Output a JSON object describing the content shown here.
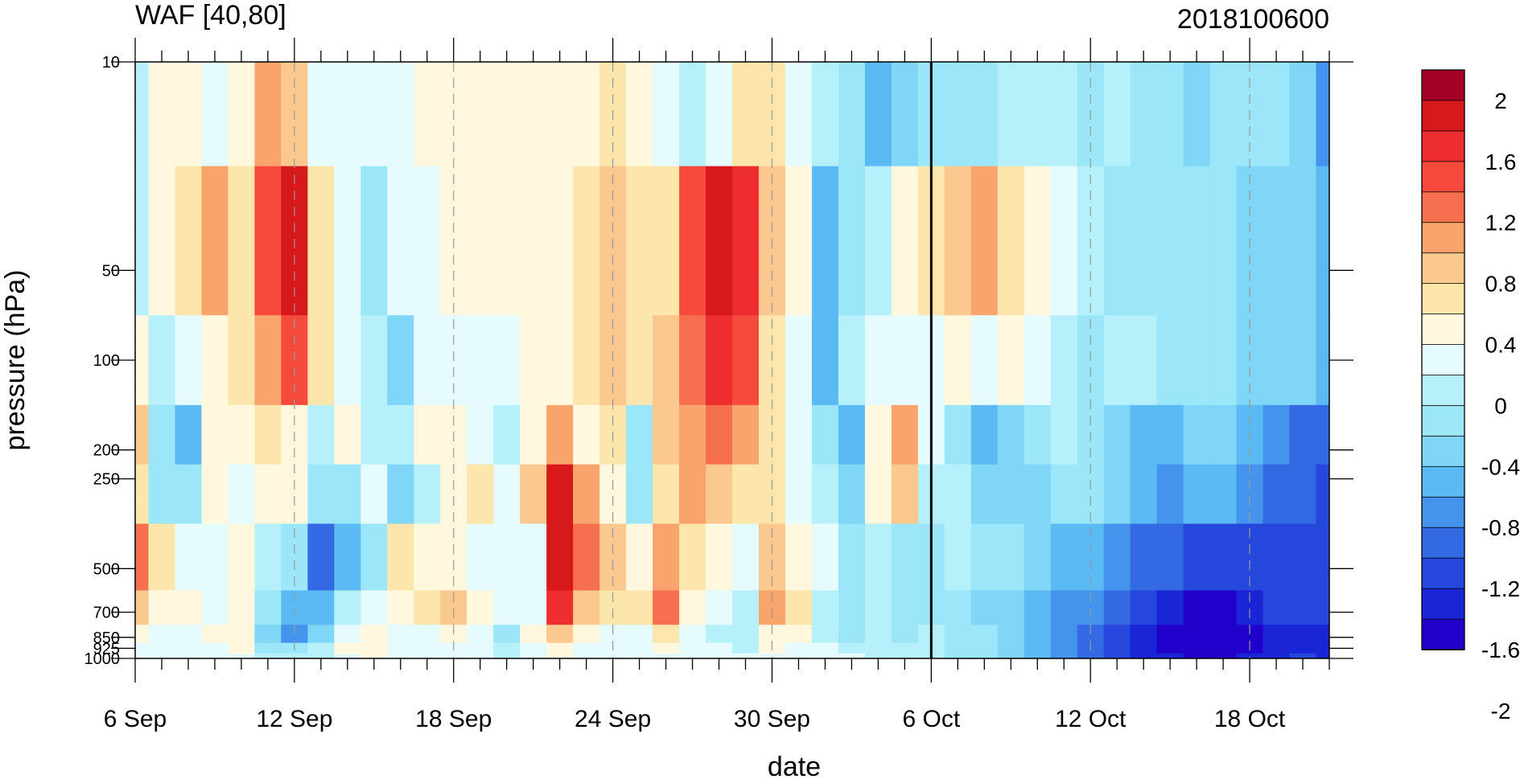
{
  "chart_data": {
    "type": "heatmap",
    "title": "WAF [40,80]",
    "subtitle": "2018100600",
    "xlabel": "date",
    "ylabel": "pressure (hPa)",
    "x_ticks": [
      "6 Sep",
      "12 Sep",
      "18 Sep",
      "24 Sep",
      "30 Sep",
      "6 Oct",
      "12 Oct",
      "18 Oct"
    ],
    "x_days": [
      0,
      6,
      12,
      18,
      24,
      30,
      36,
      42
    ],
    "xlim": [
      0,
      45
    ],
    "y_scale": "log",
    "ylim": [
      1000,
      10
    ],
    "y_ticks": [
      "10",
      "50",
      "100",
      "200",
      "250",
      "500",
      "700",
      "850",
      "925",
      "1000"
    ],
    "y_values": [
      10,
      50,
      100,
      200,
      250,
      500,
      700,
      850,
      925,
      1000
    ],
    "vertical_marker_day": 30,
    "dashed_vertical_lines": true,
    "colorbar": {
      "labels": [
        "2",
        "1.6",
        "1.2",
        "0.8",
        "0.4",
        "0",
        "-0.4",
        "-0.8",
        "-1.2",
        "-1.6",
        "-2"
      ],
      "colors": [
        "#a50026",
        "#d7191c",
        "#ee2d30",
        "#f54a3c",
        "#f6704f",
        "#f9a46c",
        "#fbc88f",
        "#fde6ac",
        "#fff8de",
        "#e6fbfd",
        "#b6f1fb",
        "#9be6f8",
        "#7fd6f7",
        "#5bb9f3",
        "#4493ec",
        "#3369e2",
        "#2547dc",
        "#1a25d6",
        "#2200cc"
      ]
    },
    "grid": {
      "days": [
        0,
        1,
        2,
        3,
        4,
        5,
        6,
        7,
        8,
        9,
        10,
        11,
        12,
        13,
        14,
        15,
        16,
        17,
        18,
        19,
        20,
        21,
        22,
        23,
        24,
        25,
        26,
        27,
        28,
        29,
        30,
        31,
        32,
        33,
        34,
        35,
        36,
        37,
        38,
        39,
        40,
        41,
        42,
        43,
        44,
        45
      ],
      "levels_hPa": [
        10,
        50,
        100,
        200,
        250,
        500,
        700,
        850,
        925,
        1000
      ],
      "values": [
        [
          -0.3,
          0.3,
          0.2,
          -0.1,
          0.3,
          0.8,
          0.6,
          0.1,
          0.0,
          0.0,
          0.1,
          0.2,
          0.2,
          0.3,
          0.3,
          0.3,
          0.3,
          0.3,
          0.5,
          0.3,
          0.0,
          -0.3,
          0.0,
          0.4,
          0.5,
          0.1,
          -0.3,
          -0.5,
          -0.9,
          -0.6,
          -0.4,
          -0.5,
          -0.4,
          -0.3,
          -0.2,
          -0.3,
          -0.5,
          -0.3,
          -0.5,
          -0.5,
          -0.7,
          -0.5,
          -0.5,
          -0.5,
          -0.7,
          -1.0
        ],
        [
          -0.3,
          0.3,
          0.5,
          0.9,
          0.5,
          1.2,
          1.7,
          0.5,
          0.0,
          -0.4,
          -0.1,
          0.0,
          0.2,
          0.3,
          0.3,
          0.2,
          0.2,
          0.4,
          0.6,
          0.4,
          0.5,
          1.2,
          1.7,
          1.4,
          0.6,
          0.3,
          -0.9,
          -0.5,
          -0.3,
          0.2,
          0.4,
          0.6,
          0.8,
          0.5,
          0.2,
          -0.1,
          -0.3,
          -0.5,
          -0.5,
          -0.4,
          -0.5,
          -0.5,
          -0.6,
          -0.6,
          -0.7,
          -0.8
        ],
        [
          0.2,
          -0.3,
          0.0,
          0.3,
          0.5,
          0.9,
          1.3,
          0.4,
          0.0,
          -0.2,
          -0.6,
          -0.1,
          0.1,
          0.1,
          -0.1,
          0.2,
          0.3,
          0.5,
          0.7,
          0.5,
          0.6,
          1.1,
          1.4,
          1.2,
          0.5,
          0.0,
          -0.8,
          -0.3,
          0.0,
          0.1,
          0.0,
          0.2,
          -0.1,
          0.2,
          0.1,
          -0.3,
          -0.4,
          -0.3,
          -0.2,
          -0.4,
          -0.5,
          -0.5,
          -0.6,
          -0.6,
          -0.7,
          -0.9
        ],
        [
          0.6,
          -0.5,
          -0.8,
          0.3,
          0.2,
          0.4,
          0.3,
          -0.2,
          0.3,
          -0.3,
          -0.3,
          0.2,
          0.3,
          -0.1,
          -0.3,
          0.3,
          0.8,
          0.3,
          0.4,
          -0.4,
          0.6,
          0.9,
          1.1,
          0.9,
          0.4,
          0.1,
          -0.4,
          -0.8,
          0.3,
          0.8,
          -0.1,
          -0.5,
          -0.9,
          -0.6,
          -0.5,
          -0.3,
          -0.4,
          -0.6,
          -0.8,
          -0.9,
          -0.7,
          -0.7,
          -0.8,
          -1.0,
          -1.2,
          -1.3
        ],
        [
          0.5,
          -0.4,
          -0.5,
          0.2,
          0.1,
          0.2,
          0.2,
          -0.4,
          -0.5,
          0.1,
          -0.6,
          -0.2,
          0.3,
          0.4,
          0.1,
          0.6,
          1.7,
          0.8,
          0.3,
          -0.4,
          0.5,
          0.8,
          0.7,
          0.5,
          0.4,
          0.0,
          -0.3,
          -0.6,
          0.2,
          0.6,
          -0.2,
          -0.3,
          -0.6,
          -0.7,
          -0.6,
          -0.5,
          -0.5,
          -0.6,
          -0.8,
          -1.0,
          -0.9,
          -0.9,
          -1.0,
          -1.2,
          -1.3,
          -1.4
        ],
        [
          1.0,
          0.5,
          0.0,
          0.1,
          0.2,
          -0.3,
          -0.5,
          -1.2,
          -0.8,
          -0.4,
          0.4,
          0.2,
          0.3,
          0.1,
          0.0,
          0.1,
          1.6,
          1.0,
          0.6,
          0.3,
          0.8,
          0.5,
          0.2,
          0.0,
          0.6,
          0.3,
          0.0,
          -0.4,
          -0.2,
          -0.4,
          -0.5,
          -0.3,
          -0.5,
          -0.5,
          -0.7,
          -0.8,
          -0.9,
          -1.0,
          -1.2,
          -1.3,
          -1.4,
          -1.5,
          -1.5,
          -1.5,
          -1.4,
          -1.4
        ],
        [
          0.6,
          0.3,
          0.3,
          0.0,
          0.3,
          -0.5,
          -0.8,
          -0.9,
          -0.3,
          0.0,
          0.3,
          0.5,
          0.7,
          0.2,
          -0.1,
          0.1,
          1.4,
          0.6,
          0.4,
          0.5,
          1.0,
          0.3,
          0.0,
          -0.2,
          0.8,
          0.4,
          -0.2,
          -0.5,
          -0.3,
          -0.5,
          -0.5,
          -0.4,
          -0.6,
          -0.7,
          -0.9,
          -1.0,
          -1.1,
          -1.2,
          -1.4,
          -1.6,
          -1.8,
          -1.8,
          -1.6,
          -1.5,
          -1.4,
          -1.5
        ],
        [
          0.3,
          0.1,
          0.0,
          0.2,
          0.3,
          -0.7,
          -1.0,
          -0.6,
          0.1,
          0.2,
          0.1,
          0.1,
          0.2,
          -0.1,
          -0.4,
          0.2,
          0.6,
          0.2,
          0.1,
          0.1,
          0.4,
          0.1,
          -0.2,
          -0.3,
          0.3,
          0.2,
          -0.2,
          -0.4,
          -0.3,
          -0.4,
          -0.3,
          -0.4,
          -0.5,
          -0.6,
          -0.8,
          -1.0,
          -1.2,
          -1.4,
          -1.6,
          -1.8,
          -1.9,
          -1.9,
          -1.8,
          -1.7,
          -1.6,
          -1.7
        ],
        [
          0.1,
          0.0,
          -0.1,
          0.1,
          0.2,
          -0.4,
          -0.5,
          -0.3,
          0.2,
          0.3,
          0.1,
          0.0,
          0.1,
          -0.1,
          -0.3,
          0.1,
          0.3,
          0.1,
          -0.1,
          0.0,
          0.2,
          0.0,
          -0.1,
          -0.2,
          0.2,
          0.1,
          -0.1,
          -0.2,
          -0.2,
          -0.3,
          -0.3,
          -0.4,
          -0.5,
          -0.6,
          -0.8,
          -1.0,
          -1.2,
          -1.4,
          -1.6,
          -1.8,
          -1.9,
          -1.9,
          -1.8,
          -1.7,
          -1.6,
          -1.7
        ],
        [
          0.0,
          0.0,
          -0.1,
          0.1,
          0.1,
          -0.2,
          -0.3,
          -0.2,
          0.1,
          0.2,
          0.1,
          0.0,
          0.0,
          -0.1,
          -0.2,
          0.0,
          0.2,
          0.1,
          -0.1,
          0.0,
          0.1,
          0.0,
          -0.1,
          -0.1,
          0.1,
          0.1,
          -0.1,
          -0.1,
          -0.2,
          -0.3,
          -0.3,
          -0.4,
          -0.5,
          -0.6,
          -0.8,
          -1.0,
          -1.2,
          -1.4,
          -1.6,
          -1.7,
          -1.8,
          -1.8,
          -1.7,
          -1.6,
          -1.5,
          -1.6
        ]
      ]
    }
  }
}
